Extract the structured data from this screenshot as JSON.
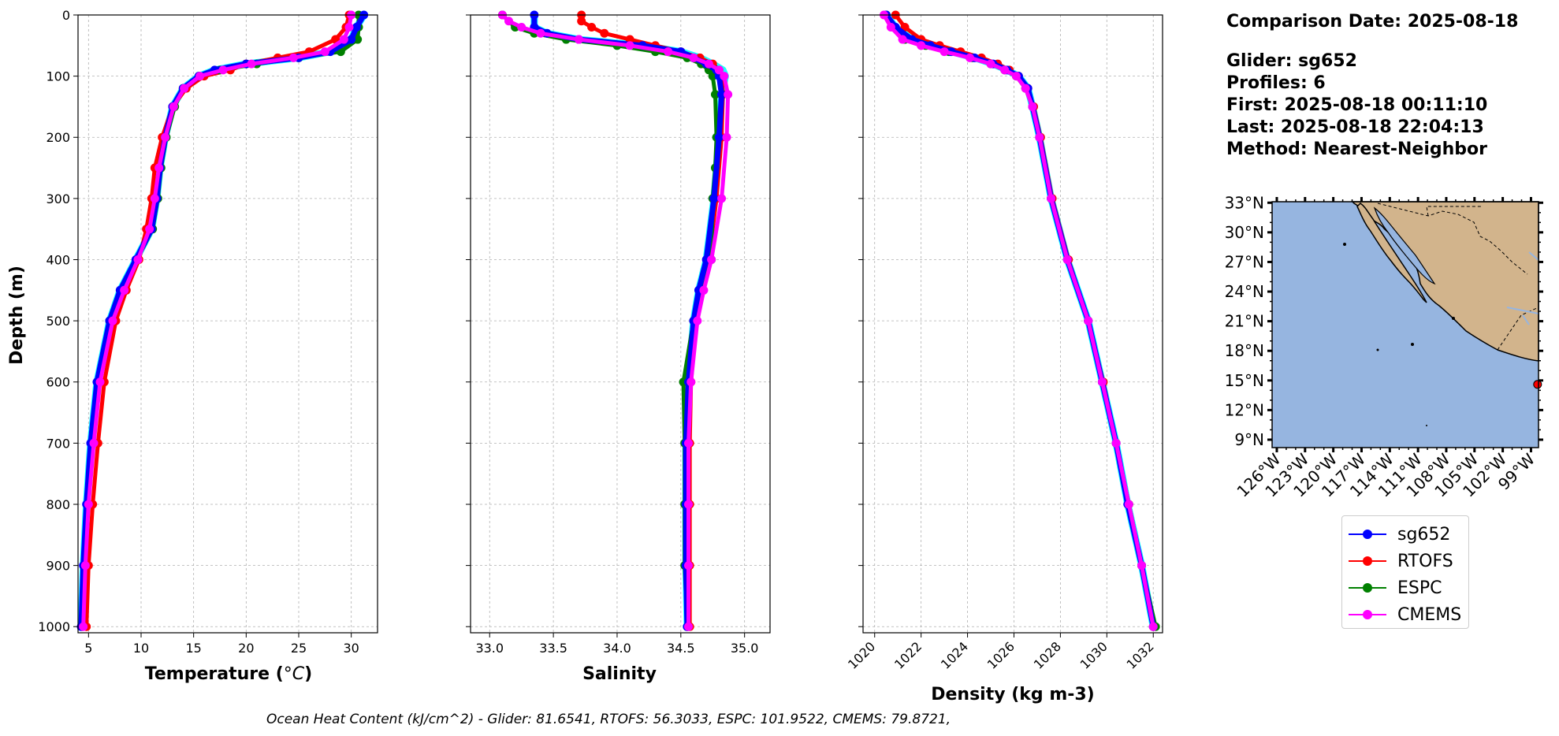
{
  "colors": {
    "glider": "#0000ff",
    "rtofs": "#ff0000",
    "espc": "#008000",
    "cmems": "#ff00ff",
    "glider_raw": "#00ffff",
    "ocean": "#96b5e0",
    "land": "#d2b48c"
  },
  "info": {
    "comparison_date": "Comparison Date: 2025-08-18",
    "glider": "Glider: sg652",
    "profiles": "Profiles: 6",
    "first": "First: 2025-08-18 00:11:10",
    "last": "Last: 2025-08-18 22:04:13",
    "method": "Method: Nearest-Neighbor"
  },
  "legend": [
    {
      "label": "sg652",
      "color": "#0000ff"
    },
    {
      "label": "RTOFS",
      "color": "#ff0000"
    },
    {
      "label": "ESPC",
      "color": "#008000"
    },
    {
      "label": "CMEMS",
      "color": "#ff00ff"
    }
  ],
  "footer": "Ocean Heat Content (kJ/cm^2) - Glider: 81.6541,  RTOFS: 56.3033,  ESPC: 101.9522,  CMEMS: 79.8721,",
  "map": {
    "lat_labels": [
      "33°N",
      "30°N",
      "27°N",
      "24°N",
      "21°N",
      "18°N",
      "15°N",
      "12°N",
      "9°N"
    ],
    "lat_values": [
      33,
      30,
      27,
      24,
      21,
      18,
      15,
      12,
      9
    ],
    "lon_labels": [
      "126°W",
      "123°W",
      "120°W",
      "117°W",
      "114°W",
      "111°W",
      "108°W",
      "105°W",
      "102°W",
      "99°W"
    ],
    "lon_values": [
      -126,
      -123,
      -120,
      -117,
      -114,
      -111,
      -108,
      -105,
      -102,
      -99
    ],
    "extent": {
      "lon_min": -126.5,
      "lon_max": -98.2,
      "lat_min": 8.2,
      "lat_max": 33.1
    },
    "glider_position": {
      "lon": -98.3,
      "lat": 14.6
    }
  },
  "chart_data": [
    {
      "type": "line",
      "xlabel": "Temperature (°C)",
      "ylabel": "Depth (m)",
      "xlim": [
        4,
        32.5
      ],
      "ylim": [
        1010,
        0
      ],
      "xticks": [
        5,
        10,
        15,
        20,
        25,
        30
      ],
      "yticks": [
        0,
        100,
        200,
        300,
        400,
        500,
        600,
        700,
        800,
        900,
        1000
      ],
      "grid": true,
      "series": [
        {
          "name": "sg652",
          "depth": [
            0,
            20,
            40,
            60,
            70,
            80,
            90,
            100,
            120,
            150,
            200,
            250,
            300,
            350,
            400,
            450,
            500,
            600,
            700,
            800,
            900,
            1000
          ],
          "values": [
            31.2,
            30.5,
            30,
            28,
            25,
            20,
            17,
            15.5,
            14,
            13,
            12.3,
            11.8,
            11.5,
            11,
            9.5,
            8,
            7,
            5.8,
            5.2,
            4.8,
            4.5,
            4.3
          ]
        },
        {
          "name": "RTOFS",
          "depth": [
            0,
            20,
            40,
            60,
            70,
            80,
            90,
            100,
            120,
            150,
            200,
            250,
            300,
            350,
            400,
            450,
            500,
            600,
            700,
            800,
            900,
            1000
          ],
          "values": [
            29.8,
            29.5,
            28.5,
            26,
            23,
            20,
            18.5,
            16,
            14.3,
            13,
            12,
            11.3,
            11,
            10.5,
            9.8,
            8.6,
            7.6,
            6.5,
            5.9,
            5.4,
            5,
            4.8
          ]
        },
        {
          "name": "ESPC",
          "depth": [
            0,
            20,
            40,
            60,
            70,
            80,
            90,
            100,
            120,
            150,
            200,
            250,
            300,
            350,
            400,
            450,
            500,
            600,
            700,
            800,
            900,
            1000
          ],
          "values": [
            30.7,
            30.7,
            30.6,
            29,
            25,
            21,
            17.5,
            15.5,
            14,
            13.2,
            12.4,
            11.9,
            11.6,
            11.1,
            9.6,
            8.2,
            7,
            6,
            5.4,
            4.9,
            4.6,
            4.4
          ]
        },
        {
          "name": "CMEMS",
          "depth": [
            0,
            20,
            40,
            60,
            70,
            80,
            90,
            100,
            120,
            150,
            200,
            250,
            300,
            350,
            400,
            450,
            500,
            600,
            700,
            800,
            900,
            1000
          ],
          "values": [
            30,
            29.8,
            29.3,
            27.5,
            24.5,
            20.5,
            17.8,
            15.6,
            14.1,
            13.1,
            12.3,
            11.7,
            11.3,
            10.8,
            9.7,
            8.4,
            7.3,
            6.1,
            5.5,
            5,
            4.7,
            4.5
          ]
        }
      ]
    },
    {
      "type": "line",
      "xlabel": "Salinity",
      "xlim": [
        32.85,
        35.2
      ],
      "ylim": [
        1010,
        0
      ],
      "xticks": [
        33.0,
        33.5,
        34.0,
        34.5,
        35.0
      ],
      "grid": true,
      "series": [
        {
          "name": "sg652",
          "depth": [
            0,
            20,
            30,
            40,
            50,
            60,
            70,
            80,
            90,
            100,
            130,
            200,
            300,
            400,
            450,
            500,
            600,
            700,
            800,
            900,
            1000
          ],
          "values": [
            33.35,
            33.35,
            33.45,
            33.7,
            34.2,
            34.5,
            34.6,
            34.7,
            34.78,
            34.8,
            34.82,
            34.8,
            34.76,
            34.7,
            34.64,
            34.6,
            34.56,
            34.54,
            34.54,
            34.54,
            34.55
          ]
        },
        {
          "name": "RTOFS",
          "depth": [
            0,
            10,
            20,
            30,
            40,
            50,
            60,
            70,
            80,
            90,
            100,
            130,
            200,
            300,
            400,
            450,
            500,
            600,
            700,
            800,
            900,
            1000
          ],
          "values": [
            33.72,
            33.72,
            33.8,
            33.9,
            34.1,
            34.3,
            34.5,
            34.65,
            34.75,
            34.8,
            34.82,
            34.83,
            34.82,
            34.78,
            34.72,
            34.66,
            34.62,
            34.58,
            34.57,
            34.57,
            34.57,
            34.57
          ]
        },
        {
          "name": "ESPC",
          "depth": [
            0,
            20,
            30,
            40,
            50,
            60,
            70,
            80,
            90,
            100,
            130,
            200,
            250,
            300,
            400,
            450,
            500,
            600,
            700,
            800,
            900,
            1000
          ],
          "values": [
            33.1,
            33.2,
            33.35,
            33.6,
            34,
            34.3,
            34.55,
            34.66,
            34.72,
            34.75,
            34.77,
            34.78,
            34.77,
            34.75,
            34.74,
            34.66,
            34.6,
            34.52,
            34.53,
            34.53,
            34.53,
            34.55
          ]
        },
        {
          "name": "CMEMS",
          "depth": [
            0,
            10,
            20,
            30,
            40,
            50,
            60,
            70,
            80,
            90,
            100,
            130,
            200,
            300,
            400,
            450,
            500,
            600,
            700,
            800,
            900,
            1000
          ],
          "values": [
            33.1,
            33.15,
            33.25,
            33.4,
            33.7,
            34.1,
            34.4,
            34.6,
            34.72,
            34.8,
            34.84,
            34.87,
            34.86,
            34.82,
            34.74,
            34.68,
            34.63,
            34.58,
            34.56,
            34.56,
            34.56,
            34.56
          ]
        }
      ]
    },
    {
      "type": "line",
      "xlabel": "Density (kg m-3)",
      "xlim": [
        1019.5,
        1032.4
      ],
      "ylim": [
        1010,
        0
      ],
      "xticks": [
        1020,
        1022,
        1024,
        1026,
        1028,
        1030,
        1032
      ],
      "grid": true,
      "series": [
        {
          "name": "sg652",
          "depth": [
            0,
            20,
            40,
            50,
            60,
            70,
            80,
            90,
            100,
            120,
            150,
            200,
            300,
            400,
            500,
            600,
            700,
            800,
            900,
            1000
          ],
          "values": [
            1020.5,
            1020.9,
            1021.6,
            1022.4,
            1023.3,
            1024.3,
            1025.1,
            1025.7,
            1026.2,
            1026.6,
            1026.8,
            1027.1,
            1027.6,
            1028.3,
            1029.2,
            1029.8,
            1030.4,
            1030.9,
            1031.5,
            1032
          ]
        },
        {
          "name": "RTOFS",
          "depth": [
            0,
            20,
            40,
            50,
            60,
            70,
            80,
            90,
            100,
            120,
            150,
            200,
            300,
            400,
            500,
            600,
            700,
            800,
            900,
            1000
          ],
          "values": [
            1020.9,
            1021.3,
            1022,
            1022.8,
            1023.7,
            1024.6,
            1025.3,
            1025.8,
            1026.2,
            1026.6,
            1026.85,
            1027.15,
            1027.65,
            1028.35,
            1029.2,
            1029.85,
            1030.4,
            1030.95,
            1031.5,
            1032
          ]
        },
        {
          "name": "ESPC",
          "depth": [
            0,
            20,
            40,
            50,
            60,
            70,
            80,
            90,
            100,
            120,
            150,
            200,
            300,
            400,
            500,
            600,
            700,
            800,
            900,
            1000
          ],
          "values": [
            1020.5,
            1020.8,
            1021.3,
            1022.2,
            1023.2,
            1024.2,
            1025,
            1025.6,
            1026.1,
            1026.5,
            1026.8,
            1027.1,
            1027.6,
            1028.3,
            1029.2,
            1029.8,
            1030.4,
            1030.95,
            1031.5,
            1032.1
          ]
        },
        {
          "name": "CMEMS",
          "depth": [
            0,
            20,
            40,
            50,
            60,
            70,
            80,
            90,
            100,
            120,
            150,
            200,
            300,
            400,
            500,
            600,
            700,
            800,
            900,
            1000
          ],
          "values": [
            1020.4,
            1020.7,
            1021.2,
            1022,
            1023,
            1024.1,
            1025,
            1025.6,
            1026.1,
            1026.5,
            1026.8,
            1027.1,
            1027.6,
            1028.3,
            1029.2,
            1029.8,
            1030.4,
            1030.95,
            1031.5,
            1032
          ]
        }
      ]
    }
  ]
}
